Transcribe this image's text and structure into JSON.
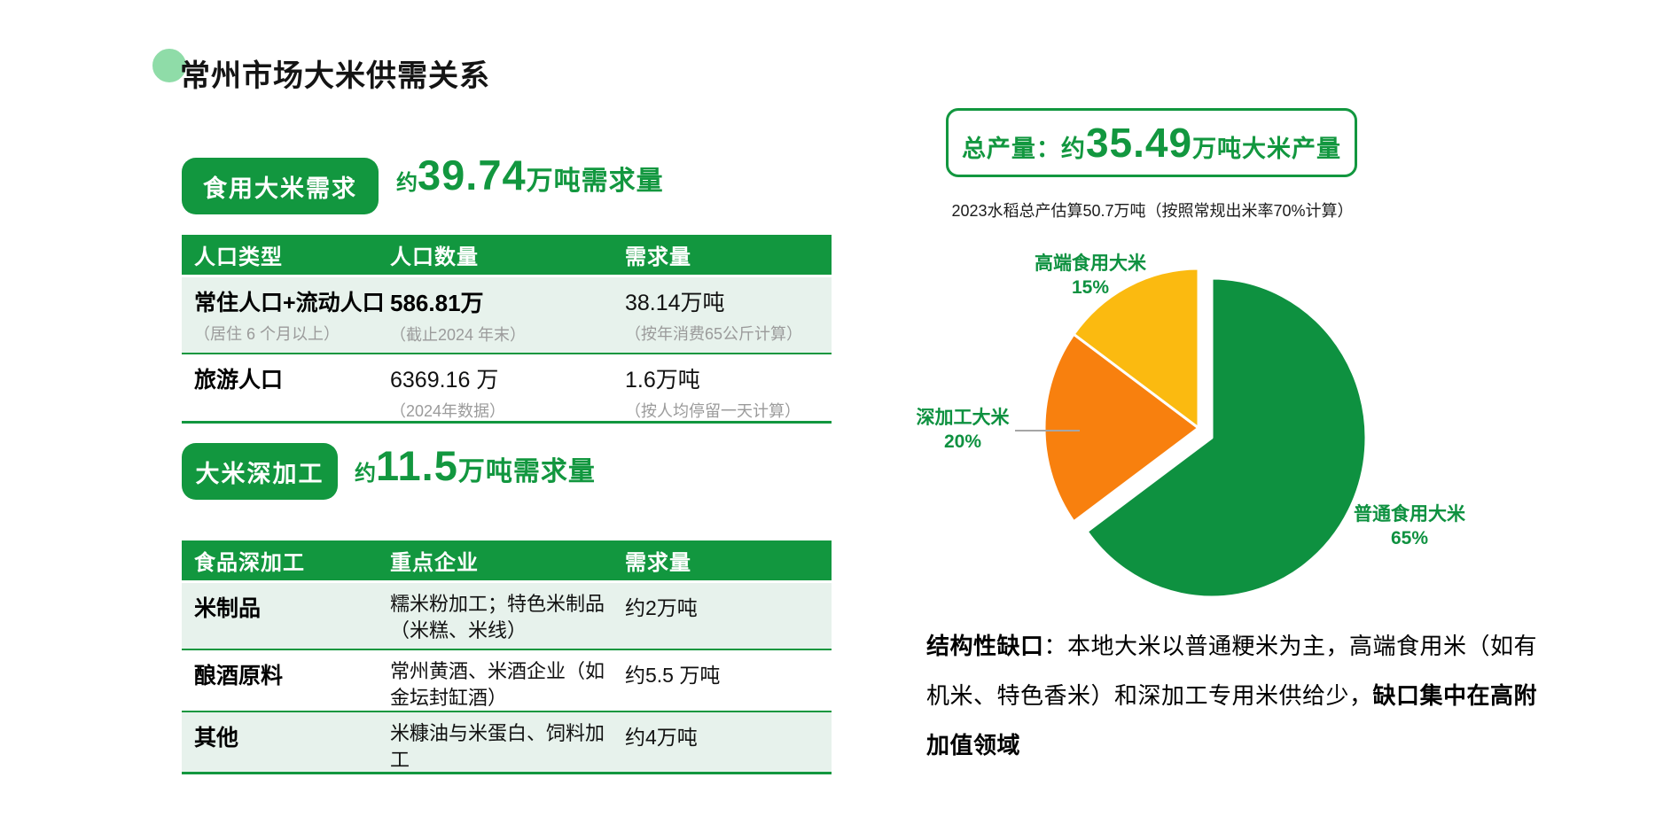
{
  "title": {
    "text": "常州市场大米供需关系"
  },
  "demand": {
    "badge": "食用大米需求",
    "approx": "约",
    "value": "39.74",
    "unit": "万吨需求量",
    "table": {
      "headers": [
        "人口类型",
        "人口数量",
        "需求量"
      ],
      "rows": [
        {
          "type": "常住人口+流动人口",
          "type_note": "（居住 6 个月以上）",
          "count": "586.81万",
          "count_note": "（截止2024 年末）",
          "demand": "38.14万吨",
          "demand_note": "（按年消费65公斤计算）"
        },
        {
          "type": "旅游人口",
          "type_note": "",
          "count": "6369.16 万",
          "count_note": "（2024年数据）",
          "demand": "1.6万吨",
          "demand_note": "（按人均停留一天计算）"
        }
      ]
    }
  },
  "processing": {
    "badge": "大米深加工",
    "approx": "约",
    "value": "11.5",
    "unit": "万吨需求量",
    "table": {
      "headers": [
        "食品深加工",
        "重点企业",
        "需求量"
      ],
      "rows": [
        {
          "category": "米制品",
          "enterprises": "糯米粉加工；特色米制品（米糕、米线）",
          "demand": "约2万吨"
        },
        {
          "category": "酿酒原料",
          "enterprises": "常州黄酒、米酒企业（如金坛封缸酒）",
          "demand": "约5.5 万吨"
        },
        {
          "category": "其他",
          "enterprises": "米糠油与米蛋白、饲料加工",
          "demand": "约4万吨"
        }
      ]
    }
  },
  "supply": {
    "box_prefix": "总产量：约",
    "box_value": "35.49",
    "box_suffix": "万吨大米产量",
    "subtitle": "2023水稻总产估算50.7万吨（按照常规出米率70%计算）"
  },
  "chart_data": {
    "type": "pie",
    "title": "",
    "start_angle_deg": 0,
    "direction": "clockwise",
    "legend_position": "outside-labels",
    "slices": [
      {
        "id": "ordinary",
        "label": "普通食用大米",
        "pct": 65,
        "pct_label": "65%",
        "color": "#0E9140",
        "exploded": true
      },
      {
        "id": "processing",
        "label": "深加工大米",
        "pct": 20,
        "pct_label": "20%",
        "color": "#F8800E",
        "exploded": false
      },
      {
        "id": "premium",
        "label": "高端食用大米",
        "pct": 15,
        "pct_label": "15%",
        "color": "#FBBA10",
        "exploded": false
      }
    ]
  },
  "gap_note": {
    "lead_bold": "结构性缺口",
    "body": "：本地大米以普通粳米为主，高端食用米（如有机米、特色香米）和深加工专用米供给少，",
    "tail_bold": "缺口集中在高附加值领域"
  },
  "colors": {
    "primary_green": "#12973F",
    "pie_green": "#0E9140",
    "mint_ring": "#8FDCA8",
    "row_background": "#E7F2EC",
    "orange": "#F8800E",
    "yellow": "#FBBA10",
    "note_gray": "#9B9B9B"
  }
}
